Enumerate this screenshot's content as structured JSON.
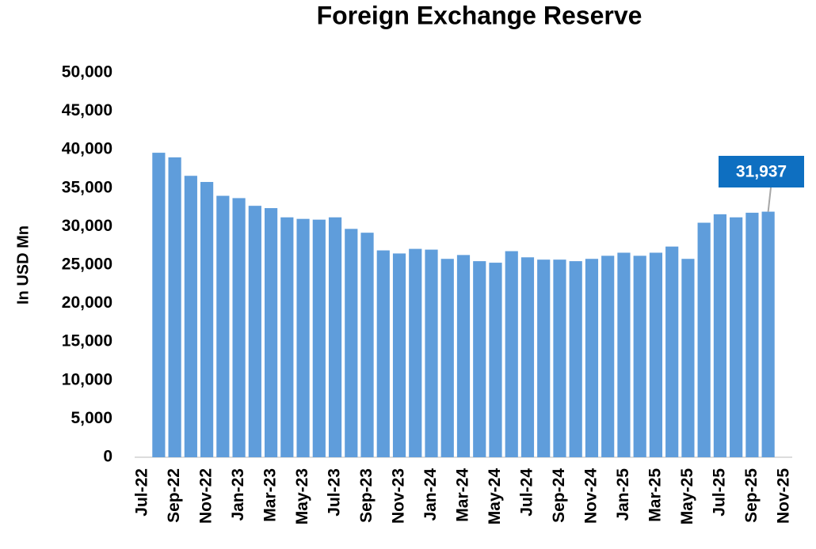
{
  "chart_data": {
    "type": "bar",
    "title": "Foreign Exchange Reserve",
    "y_label": "In USD Mn",
    "categories": [
      "Jul-22",
      null,
      "Sep-22",
      null,
      "Nov-22",
      null,
      "Jan-23",
      null,
      "Mar-23",
      null,
      "May-23",
      null,
      "Jul-23",
      null,
      "Sep-23",
      null,
      "Nov-23",
      null,
      "Jan-24",
      null,
      "Mar-24",
      null,
      "May-24",
      null,
      "Jul-24",
      null,
      "Sep-24",
      null,
      "Nov-24",
      null,
      "Jan-25",
      null,
      "Mar-25",
      null,
      "May-25",
      null,
      "Jul-25",
      null,
      "Sep-25",
      null,
      "Nov-25"
    ],
    "values": [
      null,
      39600,
      39000,
      36600,
      35800,
      34000,
      33700,
      32700,
      32400,
      31200,
      31000,
      30900,
      31200,
      29700,
      29200,
      26900,
      26500,
      27100,
      27000,
      25800,
      26300,
      25500,
      25300,
      26800,
      26000,
      25700,
      25700,
      25500,
      25800,
      26200,
      26600,
      26200,
      26600,
      27400,
      25800,
      30500,
      31600,
      31200,
      31800,
      31937,
      null
    ],
    "value_labels": [
      null,
      null,
      null,
      null,
      null,
      null,
      null,
      null,
      null,
      null,
      null,
      null,
      null,
      null,
      null,
      null,
      null,
      null,
      null,
      null,
      null,
      null,
      null,
      null,
      null,
      null,
      null,
      null,
      null,
      null,
      null,
      null,
      null,
      null,
      null,
      null,
      null,
      null,
      null,
      "31,937",
      null
    ],
    "color": "#5f9ddb",
    "label_color": "#0e6fc1",
    "ylim": [
      0,
      50000
    ],
    "yticks": [
      0,
      {
        "value": 5000,
        "label": "5,000"
      },
      {
        "value": 10000,
        "label": "10,000"
      },
      {
        "value": 15000,
        "label": "15,000"
      },
      {
        "value": 20000,
        "label": "20,000"
      },
      {
        "value": 25000,
        "label": "25,000"
      },
      {
        "value": 30000,
        "label": "30,000"
      },
      {
        "value": 35000,
        "label": "35,000"
      },
      {
        "value": 40000,
        "label": "40,000"
      },
      {
        "value": 45000,
        "label": "45,000"
      },
      {
        "value": 50000,
        "label": "50,000"
      }
    ],
    "grid": false
  }
}
